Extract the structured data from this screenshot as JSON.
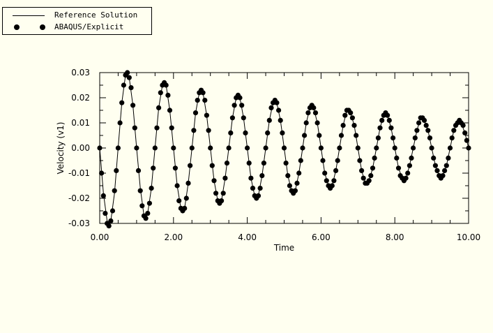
{
  "legend": {
    "entries": [
      {
        "label": "Reference Solution",
        "marker": "line"
      },
      {
        "label": "ABAQUS/Explicit",
        "marker": "dot"
      }
    ]
  },
  "chart_data": {
    "type": "line",
    "title": "",
    "xlabel": "Time",
    "ylabel": "Velocity (v1)",
    "xlim": [
      0.0,
      10.0
    ],
    "ylim": [
      -0.03,
      0.03
    ],
    "x_ticks": [
      0,
      2,
      4,
      6,
      8,
      10
    ],
    "x_tick_labels": [
      "0.00",
      "2.00",
      "4.00",
      "6.00",
      "8.00",
      "10.00"
    ],
    "y_ticks": [
      0.03,
      0.02,
      0.01,
      0.0,
      -0.01,
      -0.02,
      -0.03
    ],
    "y_tick_labels": [
      "0.03",
      "0.02",
      "0.01",
      "0.00",
      "-0.01",
      "-0.02",
      "-0.03"
    ],
    "grid": false,
    "legend_position": "top-left",
    "series": [
      {
        "name": "Reference Solution",
        "style": "line",
        "x": [
          0.0,
          0.1,
          0.2,
          0.25,
          0.3,
          0.4,
          0.5,
          0.6,
          0.7,
          0.75,
          0.8,
          0.9,
          1.0,
          1.1,
          1.2,
          1.25,
          1.3,
          1.4,
          1.5,
          1.6,
          1.7,
          1.75,
          1.8,
          1.9,
          2.0,
          2.1,
          2.2,
          2.25,
          2.3,
          2.4,
          2.5,
          2.6,
          2.7,
          2.75,
          2.8,
          2.9,
          3.0,
          3.1,
          3.2,
          3.25,
          3.3,
          3.4,
          3.5,
          3.6,
          3.7,
          3.75,
          3.8,
          3.9,
          4.0,
          4.1,
          4.2,
          4.25,
          4.3,
          4.4,
          4.5,
          4.6,
          4.7,
          4.75,
          4.8,
          4.9,
          5.0,
          5.1,
          5.2,
          5.25,
          5.3,
          5.4,
          5.5,
          5.6,
          5.7,
          5.75,
          5.8,
          5.9,
          6.0,
          6.1,
          6.2,
          6.25,
          6.3,
          6.4,
          6.5,
          6.6,
          6.7,
          6.75,
          6.8,
          6.9,
          7.0,
          7.1,
          7.2,
          7.25,
          7.3,
          7.4,
          7.5,
          7.6,
          7.7,
          7.75,
          7.8,
          7.9,
          8.0,
          8.1,
          8.2,
          8.25,
          8.3,
          8.4,
          8.5,
          8.6,
          8.7,
          8.75,
          8.8,
          8.9,
          9.0,
          9.1,
          9.2,
          9.25,
          9.3,
          9.4,
          9.5,
          9.6,
          9.7,
          9.75,
          9.8,
          9.9,
          10.0
        ],
        "y": [
          0.0,
          -0.018,
          -0.029,
          -0.031,
          -0.029,
          -0.018,
          0.0,
          0.018,
          0.029,
          0.03,
          0.028,
          0.017,
          0.0,
          -0.016,
          -0.027,
          -0.028,
          -0.026,
          -0.016,
          0.0,
          0.016,
          0.025,
          0.026,
          0.025,
          0.015,
          0.0,
          -0.015,
          -0.024,
          -0.025,
          -0.024,
          -0.014,
          0.0,
          0.014,
          0.022,
          0.023,
          0.022,
          0.013,
          0.0,
          -0.013,
          -0.021,
          -0.022,
          -0.021,
          -0.012,
          0.0,
          0.012,
          0.02,
          0.021,
          0.02,
          0.012,
          0.0,
          -0.012,
          -0.019,
          -0.02,
          -0.019,
          -0.011,
          0.0,
          0.011,
          0.018,
          0.019,
          0.018,
          0.011,
          0.0,
          -0.011,
          -0.017,
          -0.018,
          -0.017,
          -0.01,
          0.0,
          0.01,
          0.016,
          0.017,
          0.016,
          0.01,
          0.0,
          -0.01,
          -0.015,
          -0.016,
          -0.015,
          -0.009,
          0.0,
          0.009,
          0.015,
          0.015,
          0.014,
          0.009,
          0.0,
          -0.009,
          -0.014,
          -0.014,
          -0.013,
          -0.008,
          0.0,
          0.008,
          0.013,
          0.014,
          0.013,
          0.008,
          0.0,
          -0.008,
          -0.012,
          -0.013,
          -0.012,
          -0.007,
          0.0,
          0.007,
          0.012,
          0.012,
          0.011,
          0.007,
          0.0,
          -0.007,
          -0.011,
          -0.012,
          -0.011,
          -0.007,
          0.0,
          0.007,
          0.011,
          0.011,
          0.01,
          0.006,
          0.0
        ]
      },
      {
        "name": "ABAQUS/Explicit",
        "style": "markers",
        "x": [
          0.0,
          0.05,
          0.1,
          0.15,
          0.2,
          0.25,
          0.3,
          0.35,
          0.4,
          0.45,
          0.5,
          0.55,
          0.6,
          0.65,
          0.7,
          0.75,
          0.8,
          0.85,
          0.9,
          0.95,
          1.0,
          1.05,
          1.1,
          1.15,
          1.2,
          1.25,
          1.3,
          1.35,
          1.4,
          1.45,
          1.5,
          1.55,
          1.6,
          1.65,
          1.7,
          1.75,
          1.8,
          1.85,
          1.9,
          1.95,
          2.0,
          2.05,
          2.1,
          2.15,
          2.2,
          2.25,
          2.3,
          2.35,
          2.4,
          2.45,
          2.5,
          2.55,
          2.6,
          2.65,
          2.7,
          2.75,
          2.8,
          2.85,
          2.9,
          2.95,
          3.0,
          3.05,
          3.1,
          3.15,
          3.2,
          3.25,
          3.3,
          3.35,
          3.4,
          3.45,
          3.5,
          3.55,
          3.6,
          3.65,
          3.7,
          3.75,
          3.8,
          3.85,
          3.9,
          3.95,
          4.0,
          4.05,
          4.1,
          4.15,
          4.2,
          4.25,
          4.3,
          4.35,
          4.4,
          4.45,
          4.5,
          4.55,
          4.6,
          4.65,
          4.7,
          4.75,
          4.8,
          4.85,
          4.9,
          4.95,
          5.0,
          5.05,
          5.1,
          5.15,
          5.2,
          5.25,
          5.3,
          5.35,
          5.4,
          5.45,
          5.5,
          5.55,
          5.6,
          5.65,
          5.7,
          5.75,
          5.8,
          5.85,
          5.9,
          5.95,
          6.0,
          6.05,
          6.1,
          6.15,
          6.2,
          6.25,
          6.3,
          6.35,
          6.4,
          6.45,
          6.5,
          6.55,
          6.6,
          6.65,
          6.7,
          6.75,
          6.8,
          6.85,
          6.9,
          6.95,
          7.0,
          7.05,
          7.1,
          7.15,
          7.2,
          7.25,
          7.3,
          7.35,
          7.4,
          7.45,
          7.5,
          7.55,
          7.6,
          7.65,
          7.7,
          7.75,
          7.8,
          7.85,
          7.9,
          7.95,
          8.0,
          8.05,
          8.1,
          8.15,
          8.2,
          8.25,
          8.3,
          8.35,
          8.4,
          8.45,
          8.5,
          8.55,
          8.6,
          8.65,
          8.7,
          8.75,
          8.8,
          8.85,
          8.9,
          8.95,
          9.0,
          9.05,
          9.1,
          9.15,
          9.2,
          9.25,
          9.3,
          9.35,
          9.4,
          9.45,
          9.5,
          9.55,
          9.6,
          9.65,
          9.7,
          9.75,
          9.8,
          9.85,
          9.9,
          9.95,
          10.0
        ],
        "y": [
          0.0,
          -0.01,
          -0.019,
          -0.026,
          -0.03,
          -0.031,
          -0.029,
          -0.025,
          -0.017,
          -0.009,
          0.0,
          0.01,
          0.018,
          0.025,
          0.029,
          0.03,
          0.028,
          0.024,
          0.017,
          0.008,
          0.0,
          -0.009,
          -0.017,
          -0.023,
          -0.027,
          -0.028,
          -0.026,
          -0.022,
          -0.016,
          -0.008,
          0.0,
          0.008,
          0.016,
          0.022,
          0.025,
          0.026,
          0.025,
          0.021,
          0.015,
          0.008,
          0.0,
          -0.008,
          -0.015,
          -0.021,
          -0.024,
          -0.025,
          -0.024,
          -0.02,
          -0.014,
          -0.007,
          0.0,
          0.007,
          0.014,
          0.019,
          0.022,
          0.023,
          0.022,
          0.019,
          0.013,
          0.007,
          0.0,
          -0.007,
          -0.013,
          -0.018,
          -0.021,
          -0.022,
          -0.021,
          -0.018,
          -0.012,
          -0.006,
          0.0,
          0.006,
          0.012,
          0.017,
          0.02,
          0.021,
          0.02,
          0.017,
          0.012,
          0.006,
          0.0,
          -0.006,
          -0.012,
          -0.016,
          -0.019,
          -0.02,
          -0.019,
          -0.016,
          -0.011,
          -0.006,
          0.0,
          0.006,
          0.011,
          0.016,
          0.018,
          0.019,
          0.018,
          0.015,
          0.011,
          0.006,
          0.0,
          -0.006,
          -0.011,
          -0.015,
          -0.017,
          -0.018,
          -0.017,
          -0.014,
          -0.01,
          -0.005,
          0.0,
          0.005,
          0.01,
          0.014,
          0.016,
          0.017,
          0.016,
          0.014,
          0.01,
          0.005,
          0.0,
          -0.005,
          -0.01,
          -0.013,
          -0.015,
          -0.016,
          -0.015,
          -0.013,
          -0.009,
          -0.005,
          0.0,
          0.005,
          0.009,
          0.013,
          0.015,
          0.015,
          0.014,
          0.012,
          0.009,
          0.005,
          0.0,
          -0.005,
          -0.009,
          -0.012,
          -0.014,
          -0.014,
          -0.013,
          -0.011,
          -0.008,
          -0.004,
          0.0,
          0.004,
          0.008,
          0.011,
          0.013,
          0.014,
          0.013,
          0.011,
          0.008,
          0.004,
          0.0,
          -0.004,
          -0.008,
          -0.011,
          -0.012,
          -0.013,
          -0.012,
          -0.01,
          -0.007,
          -0.004,
          0.0,
          0.004,
          0.007,
          0.01,
          0.012,
          0.012,
          0.011,
          0.009,
          0.007,
          0.004,
          0.0,
          -0.004,
          -0.007,
          -0.009,
          -0.011,
          -0.012,
          -0.011,
          -0.009,
          -0.007,
          -0.004,
          0.0,
          0.004,
          0.007,
          0.009,
          0.01,
          0.011,
          0.01,
          0.009,
          0.006,
          0.003,
          0.0
        ]
      }
    ]
  }
}
